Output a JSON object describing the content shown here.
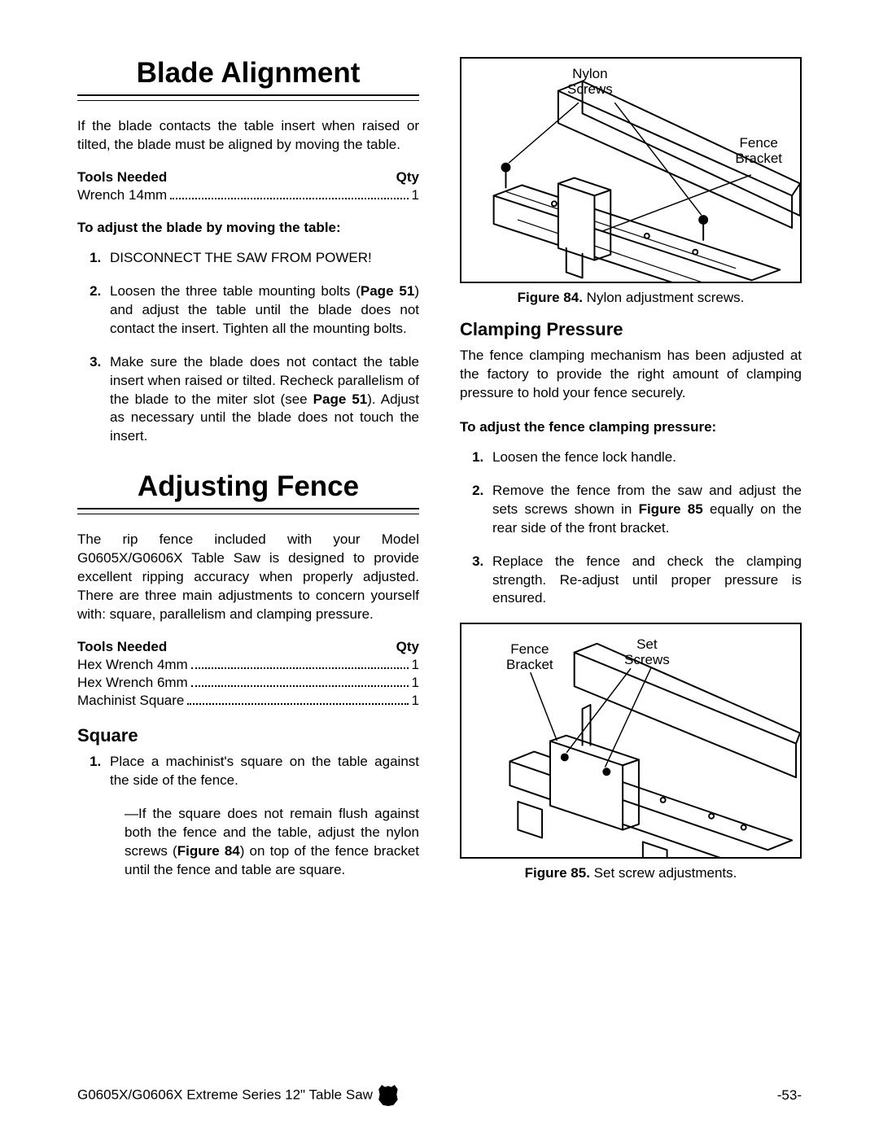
{
  "left": {
    "blade_alignment": {
      "title": "Blade Alignment",
      "intro": "If the blade contacts the table insert when raised or tilted, the blade must be aligned by moving the table.",
      "tools_header_left": "Tools Needed",
      "tools_header_right": "Qty",
      "tools": [
        {
          "name": "Wrench 14mm",
          "qty": "1"
        }
      ],
      "subhead": "To adjust the blade by moving the table:",
      "steps": [
        "DISCONNECT THE SAW FROM POWER!",
        "Loosen the three table mounting bolts (<b>Page 51</b>) and adjust the table until the blade does not contact the insert. Tighten all the mounting bolts.",
        "Make sure the blade does not contact the table insert when raised or tilted. Recheck parallelism of the blade to the miter slot (see <b>Page 51</b>). Adjust as necessary until the blade does not touch the insert."
      ]
    },
    "adjusting_fence": {
      "title": "Adjusting Fence",
      "intro": "The rip fence included with your Model G0605X/G0606X Table Saw is designed to provide excellent ripping accuracy when properly adjusted. There are three main adjustments to concern yourself with: square, parallelism and clamping pressure.",
      "tools_header_left": "Tools Needed",
      "tools_header_right": "Qty",
      "tools": [
        {
          "name": "Hex Wrench 4mm",
          "qty": "1"
        },
        {
          "name": "Hex Wrench 6mm",
          "qty": "1"
        },
        {
          "name": "Machinist Square",
          "qty": "1"
        }
      ],
      "square": {
        "heading": "Square",
        "step1": "Place a machinist's square on the table against the side of the fence.",
        "sub": "—If the square does not remain flush against both the fence and the table, adjust the nylon screws (<b>Figure 84</b>) on top of the fence bracket until the fence and table are square."
      }
    }
  },
  "right": {
    "fig84": {
      "label_nylon": "Nylon\nScrews",
      "label_bracket": "Fence\nBracket",
      "caption_b": "Figure 84.",
      "caption": " Nylon adjustment screws."
    },
    "clamping": {
      "heading": "Clamping Pressure",
      "intro": "The fence clamping mechanism has been adjusted at the factory to provide the right amount of clamping pressure to hold your fence securely.",
      "subhead": "To adjust the fence clamping pressure:",
      "steps": [
        "Loosen the fence lock handle.",
        "Remove the fence from the saw and adjust the sets screws shown in <b>Figure 85</b> equally on the rear side of the front bracket.",
        "Replace the fence and check the clamping strength. Re-adjust until proper pressure is ensured."
      ]
    },
    "fig85": {
      "label_bracket": "Fence\nBracket",
      "label_set": "Set\nScrews",
      "caption_b": "Figure 85.",
      "caption": " Set screw adjustments."
    }
  },
  "footer": {
    "left": "G0605X/G0606X Extreme Series 12\" Table Saw",
    "right": "-53-"
  }
}
